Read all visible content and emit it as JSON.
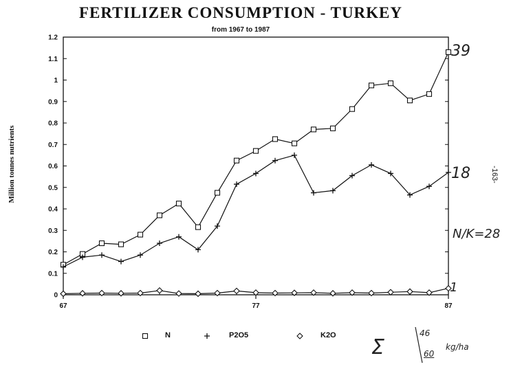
{
  "chart_data": {
    "type": "line",
    "title": "FERTILIZER CONSUMPTION  -  TURKEY",
    "subtitle": "from 1967 to 1987",
    "ylabel": "Million tonnes nutrients",
    "xlabel": "",
    "x": [
      67,
      68,
      69,
      70,
      71,
      72,
      73,
      74,
      75,
      76,
      77,
      78,
      79,
      80,
      81,
      82,
      83,
      84,
      85,
      86,
      87
    ],
    "x_tick_labels": [
      "67",
      "77",
      "87"
    ],
    "x_tick_values": [
      67,
      77,
      87
    ],
    "ylim": [
      0,
      1.2
    ],
    "y_ticks": [
      "0",
      "0.1",
      "0.2",
      "0.3",
      "0.4",
      "0.5",
      "0.6",
      "0.7",
      "0.8",
      "0.9",
      "1",
      "1.1",
      "1.2"
    ],
    "grid": false,
    "legend_position": "bottom",
    "series": [
      {
        "name": "N",
        "marker": "square",
        "values": [
          0.14,
          0.19,
          0.24,
          0.235,
          0.28,
          0.37,
          0.425,
          0.315,
          0.475,
          0.625,
          0.67,
          0.725,
          0.705,
          0.77,
          0.775,
          0.865,
          0.975,
          0.985,
          0.905,
          0.935,
          1.13
        ]
      },
      {
        "name": "P2O5",
        "marker": "plus",
        "values": [
          0.13,
          0.175,
          0.185,
          0.155,
          0.185,
          0.24,
          0.27,
          0.21,
          0.32,
          0.515,
          0.565,
          0.625,
          0.65,
          0.475,
          0.485,
          0.555,
          0.605,
          0.565,
          0.465,
          0.505,
          0.57
        ]
      },
      {
        "name": "K2O",
        "marker": "diamond",
        "values": [
          0.005,
          0.007,
          0.008,
          0.007,
          0.008,
          0.02,
          0.006,
          0.005,
          0.008,
          0.018,
          0.01,
          0.008,
          0.009,
          0.01,
          0.007,
          0.01,
          0.008,
          0.012,
          0.015,
          0.01,
          0.03
        ]
      }
    ]
  },
  "handwritten": {
    "n_end": "39",
    "p_end": "18",
    "k_end": "1",
    "ratio": "N/K=28",
    "sum": "Σ",
    "frac_top": "46",
    "frac_bottom": "60",
    "unit": "kg/ha"
  },
  "page_number": "-163-"
}
